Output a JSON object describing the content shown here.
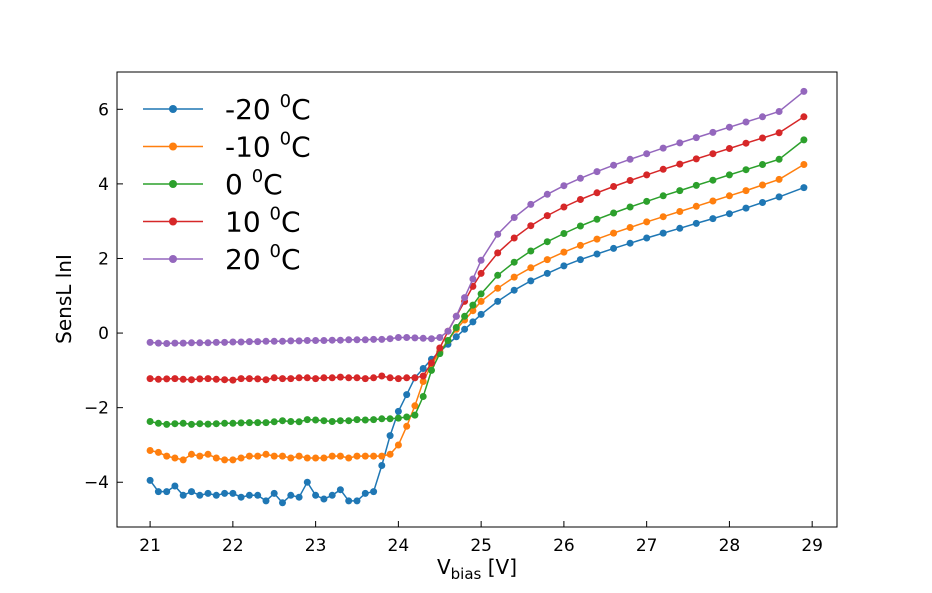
{
  "chart_data": {
    "type": "line",
    "title": "",
    "xlabel": {
      "main": "V",
      "sub": "bias",
      "rest": " [V]"
    },
    "ylabel": "SensL lnI",
    "xlim": [
      20.6,
      29.3
    ],
    "ylim": [
      -5.2,
      7.0
    ],
    "xticks": [
      21,
      22,
      23,
      24,
      25,
      26,
      27,
      28,
      29
    ],
    "yticks": [
      -4,
      -2,
      0,
      2,
      4,
      6
    ],
    "ytick_labels": [
      "−4",
      "−2",
      "0",
      "2",
      "4",
      "6"
    ],
    "legend_position": "top-left",
    "series": [
      {
        "name": "-20",
        "label_sup": "0",
        "label_unit": "C",
        "color": "#1f77b4",
        "x": [
          21.0,
          21.1,
          21.2,
          21.3,
          21.4,
          21.5,
          21.6,
          21.7,
          21.8,
          21.9,
          22.0,
          22.1,
          22.2,
          22.3,
          22.4,
          22.5,
          22.6,
          22.7,
          22.8,
          22.9,
          23.0,
          23.1,
          23.2,
          23.3,
          23.4,
          23.5,
          23.6,
          23.7,
          23.8,
          23.9,
          24.0,
          24.1,
          24.2,
          24.3,
          24.4,
          24.5,
          24.6,
          24.7,
          24.8,
          24.9,
          25.0,
          25.2,
          25.4,
          25.6,
          25.8,
          26.0,
          26.2,
          26.4,
          26.6,
          26.8,
          27.0,
          27.2,
          27.4,
          27.6,
          27.8,
          28.0,
          28.2,
          28.4,
          28.6,
          28.9
        ],
        "y": [
          -3.95,
          -4.25,
          -4.25,
          -4.1,
          -4.35,
          -4.25,
          -4.35,
          -4.3,
          -4.35,
          -4.3,
          -4.3,
          -4.4,
          -4.35,
          -4.35,
          -4.5,
          -4.3,
          -4.55,
          -4.35,
          -4.4,
          -4.0,
          -4.35,
          -4.45,
          -4.35,
          -4.2,
          -4.5,
          -4.5,
          -4.3,
          -4.25,
          -3.55,
          -2.75,
          -2.1,
          -1.65,
          -1.2,
          -0.95,
          -0.7,
          -0.5,
          -0.3,
          -0.1,
          0.1,
          0.3,
          0.5,
          0.85,
          1.15,
          1.4,
          1.6,
          1.8,
          1.97,
          2.12,
          2.27,
          2.41,
          2.55,
          2.68,
          2.81,
          2.94,
          3.07,
          3.2,
          3.35,
          3.5,
          3.65,
          3.9
        ]
      },
      {
        "name": "-10",
        "label_sup": "0",
        "label_unit": "C",
        "color": "#ff7f0e",
        "x": [
          21.0,
          21.1,
          21.2,
          21.3,
          21.4,
          21.5,
          21.6,
          21.7,
          21.8,
          21.9,
          22.0,
          22.1,
          22.2,
          22.3,
          22.4,
          22.5,
          22.6,
          22.7,
          22.8,
          22.9,
          23.0,
          23.1,
          23.2,
          23.3,
          23.4,
          23.5,
          23.6,
          23.7,
          23.8,
          23.9,
          24.0,
          24.1,
          24.2,
          24.3,
          24.4,
          24.5,
          24.6,
          24.7,
          24.8,
          24.9,
          25.0,
          25.2,
          25.4,
          25.6,
          25.8,
          26.0,
          26.2,
          26.4,
          26.6,
          26.8,
          27.0,
          27.2,
          27.4,
          27.6,
          27.8,
          28.0,
          28.2,
          28.4,
          28.6,
          28.9
        ],
        "y": [
          -3.15,
          -3.2,
          -3.3,
          -3.35,
          -3.4,
          -3.25,
          -3.3,
          -3.25,
          -3.35,
          -3.4,
          -3.4,
          -3.35,
          -3.3,
          -3.3,
          -3.25,
          -3.3,
          -3.3,
          -3.35,
          -3.3,
          -3.35,
          -3.35,
          -3.35,
          -3.3,
          -3.3,
          -3.35,
          -3.3,
          -3.3,
          -3.3,
          -3.3,
          -3.25,
          -3.0,
          -2.5,
          -1.95,
          -1.3,
          -0.85,
          -0.5,
          -0.2,
          0.1,
          0.35,
          0.6,
          0.85,
          1.2,
          1.5,
          1.75,
          1.97,
          2.17,
          2.35,
          2.52,
          2.68,
          2.83,
          2.98,
          3.12,
          3.26,
          3.4,
          3.54,
          3.68,
          3.82,
          3.97,
          4.12,
          4.52
        ]
      },
      {
        "name": "0",
        "label_sup": "0",
        "label_unit": "C",
        "color": "#2ca02c",
        "x": [
          21.0,
          21.1,
          21.2,
          21.3,
          21.4,
          21.5,
          21.6,
          21.7,
          21.8,
          21.9,
          22.0,
          22.1,
          22.2,
          22.3,
          22.4,
          22.5,
          22.6,
          22.7,
          22.8,
          22.9,
          23.0,
          23.1,
          23.2,
          23.3,
          23.4,
          23.5,
          23.6,
          23.7,
          23.8,
          23.9,
          24.0,
          24.1,
          24.2,
          24.3,
          24.4,
          24.5,
          24.6,
          24.7,
          24.8,
          24.9,
          25.0,
          25.2,
          25.4,
          25.6,
          25.8,
          26.0,
          26.2,
          26.4,
          26.6,
          26.8,
          27.0,
          27.2,
          27.4,
          27.6,
          27.8,
          28.0,
          28.2,
          28.4,
          28.6,
          28.9
        ],
        "y": [
          -2.37,
          -2.42,
          -2.45,
          -2.43,
          -2.42,
          -2.45,
          -2.43,
          -2.44,
          -2.43,
          -2.42,
          -2.42,
          -2.41,
          -2.4,
          -2.4,
          -2.4,
          -2.38,
          -2.35,
          -2.37,
          -2.38,
          -2.32,
          -2.33,
          -2.35,
          -2.37,
          -2.35,
          -2.35,
          -2.32,
          -2.33,
          -2.32,
          -2.3,
          -2.3,
          -2.28,
          -2.25,
          -2.2,
          -1.7,
          -1.0,
          -0.55,
          -0.2,
          0.15,
          0.45,
          0.75,
          1.05,
          1.55,
          1.9,
          2.2,
          2.45,
          2.67,
          2.87,
          3.05,
          3.22,
          3.38,
          3.53,
          3.68,
          3.82,
          3.96,
          4.1,
          4.24,
          4.38,
          4.52,
          4.66,
          5.18
        ]
      },
      {
        "name": "10",
        "label_sup": "0",
        "label_unit": "C",
        "color": "#d62728",
        "x": [
          21.0,
          21.1,
          21.2,
          21.3,
          21.4,
          21.5,
          21.6,
          21.7,
          21.8,
          21.9,
          22.0,
          22.1,
          22.2,
          22.3,
          22.4,
          22.5,
          22.6,
          22.7,
          22.8,
          22.9,
          23.0,
          23.1,
          23.2,
          23.3,
          23.4,
          23.5,
          23.6,
          23.7,
          23.8,
          23.9,
          24.0,
          24.1,
          24.2,
          24.3,
          24.4,
          24.5,
          24.6,
          24.7,
          24.8,
          24.9,
          25.0,
          25.2,
          25.4,
          25.6,
          25.8,
          26.0,
          26.2,
          26.4,
          26.6,
          26.8,
          27.0,
          27.2,
          27.4,
          27.6,
          27.8,
          28.0,
          28.2,
          28.4,
          28.6,
          28.9
        ],
        "y": [
          -1.22,
          -1.24,
          -1.23,
          -1.22,
          -1.24,
          -1.25,
          -1.23,
          -1.22,
          -1.24,
          -1.25,
          -1.26,
          -1.22,
          -1.22,
          -1.23,
          -1.25,
          -1.2,
          -1.22,
          -1.22,
          -1.2,
          -1.2,
          -1.22,
          -1.2,
          -1.2,
          -1.18,
          -1.2,
          -1.2,
          -1.22,
          -1.2,
          -1.15,
          -1.2,
          -1.22,
          -1.2,
          -1.2,
          -1.15,
          -0.8,
          -0.4,
          0.05,
          0.45,
          0.85,
          1.25,
          1.6,
          2.15,
          2.55,
          2.88,
          3.15,
          3.38,
          3.58,
          3.76,
          3.93,
          4.09,
          4.24,
          4.39,
          4.53,
          4.67,
          4.81,
          4.95,
          5.09,
          5.23,
          5.37,
          5.8
        ]
      },
      {
        "name": "20",
        "label_sup": "0",
        "label_unit": "C",
        "color": "#9467bd",
        "x": [
          21.0,
          21.1,
          21.2,
          21.3,
          21.4,
          21.5,
          21.6,
          21.7,
          21.8,
          21.9,
          22.0,
          22.1,
          22.2,
          22.3,
          22.4,
          22.5,
          22.6,
          22.7,
          22.8,
          22.9,
          23.0,
          23.1,
          23.2,
          23.3,
          23.4,
          23.5,
          23.6,
          23.7,
          23.8,
          23.9,
          24.0,
          24.1,
          24.2,
          24.3,
          24.4,
          24.5,
          24.6,
          24.7,
          24.8,
          24.9,
          25.0,
          25.2,
          25.4,
          25.6,
          25.8,
          26.0,
          26.2,
          26.4,
          26.6,
          26.8,
          27.0,
          27.2,
          27.4,
          27.6,
          27.8,
          28.0,
          28.2,
          28.4,
          28.6,
          28.9
        ],
        "y": [
          -0.25,
          -0.27,
          -0.28,
          -0.27,
          -0.27,
          -0.26,
          -0.26,
          -0.26,
          -0.25,
          -0.25,
          -0.24,
          -0.24,
          -0.23,
          -0.23,
          -0.22,
          -0.22,
          -0.22,
          -0.21,
          -0.21,
          -0.2,
          -0.2,
          -0.2,
          -0.19,
          -0.19,
          -0.18,
          -0.18,
          -0.18,
          -0.17,
          -0.17,
          -0.15,
          -0.12,
          -0.12,
          -0.13,
          -0.14,
          -0.15,
          -0.12,
          0.05,
          0.45,
          0.95,
          1.45,
          1.95,
          2.65,
          3.1,
          3.45,
          3.72,
          3.95,
          4.15,
          4.33,
          4.5,
          4.66,
          4.81,
          4.96,
          5.1,
          5.24,
          5.38,
          5.52,
          5.66,
          5.8,
          5.94,
          6.48
        ]
      }
    ]
  }
}
